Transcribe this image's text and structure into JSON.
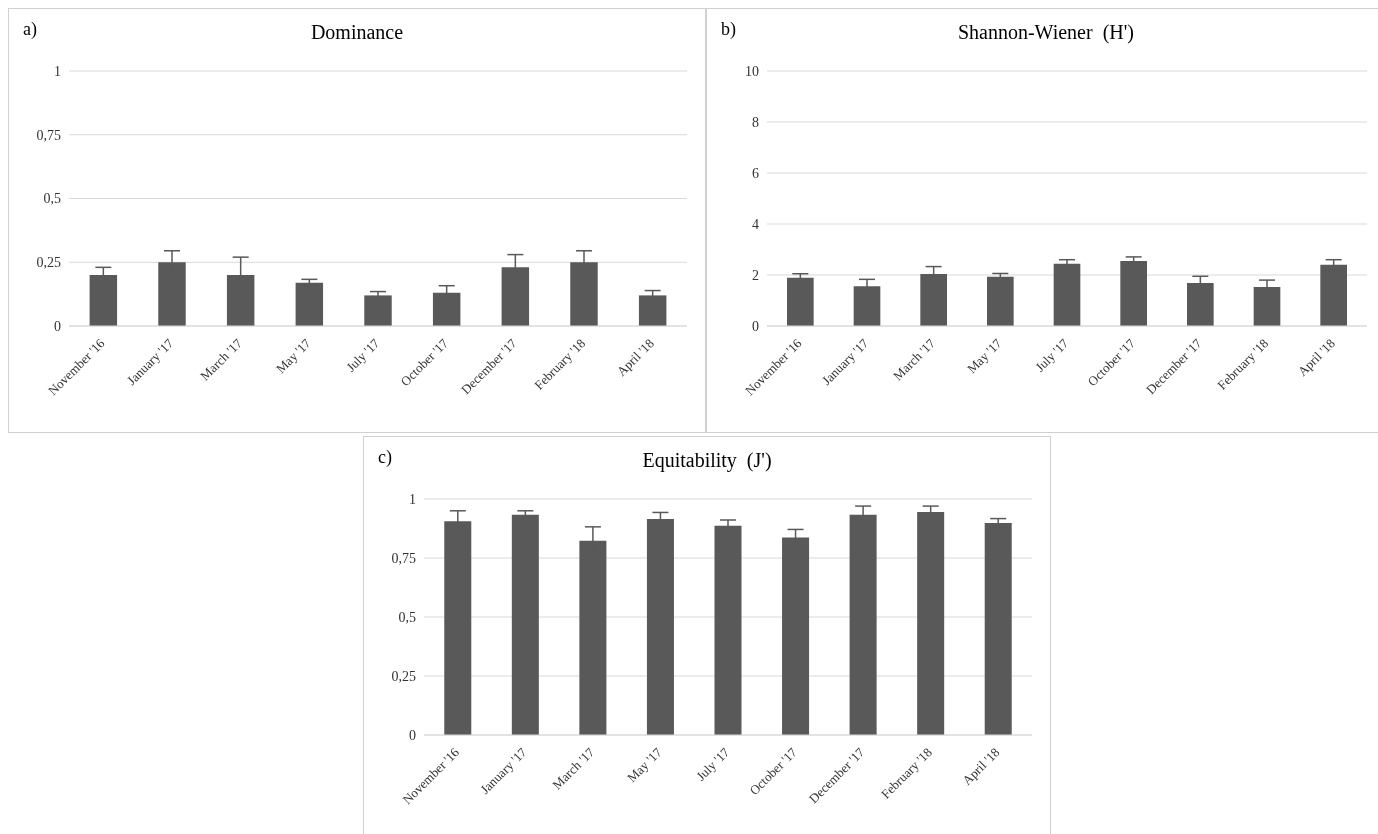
{
  "chart_data": [
    {
      "type": "bar",
      "title": "Dominance",
      "annotations": [
        "a)"
      ],
      "categories": [
        "November '16",
        "January '17",
        "March '17",
        "May '17",
        "July '17",
        "October '17",
        "December '17",
        "February '18",
        "April '18"
      ],
      "values": [
        0.2,
        0.25,
        0.2,
        0.17,
        0.12,
        0.13,
        0.23,
        0.25,
        0.12
      ],
      "errors": [
        0.03,
        0.045,
        0.07,
        0.013,
        0.015,
        0.028,
        0.05,
        0.045,
        0.019
      ],
      "color": "#595959",
      "ylim": [
        0,
        1
      ],
      "yticks": [
        0,
        {
          "value": 0.25,
          "label": "0,25"
        },
        {
          "value": 0.5,
          "label": "0,5"
        },
        {
          "value": 0.75,
          "label": "0,75"
        },
        1
      ],
      "grid": "y"
    },
    {
      "type": "bar",
      "title": "Shannon-Wiener  (H')",
      "annotations": [
        "b)"
      ],
      "categories": [
        "November '16",
        "January '17",
        "March '17",
        "May '17",
        "July '17",
        "October '17",
        "December '17",
        "February '18",
        "April '18"
      ],
      "values": [
        1.89,
        1.56,
        2.04,
        1.93,
        2.44,
        2.55,
        1.69,
        1.53,
        2.4
      ],
      "errors": [
        0.16,
        0.27,
        0.29,
        0.13,
        0.16,
        0.16,
        0.26,
        0.27,
        0.2
      ],
      "color": "#595959",
      "ylim": [
        0,
        10
      ],
      "yticks": [
        0,
        2,
        4,
        6,
        8,
        10
      ],
      "grid": "y"
    },
    {
      "type": "bar",
      "title": "Equitability  (J')",
      "annotations": [
        "c)"
      ],
      "categories": [
        "November '16",
        "January '17",
        "March '17",
        "May '17",
        "July '17",
        "October '17",
        "December '17",
        "February '18",
        "April '18"
      ],
      "values": [
        0.906,
        0.933,
        0.823,
        0.915,
        0.887,
        0.837,
        0.933,
        0.945,
        0.898
      ],
      "errors": [
        0.044,
        0.017,
        0.059,
        0.028,
        0.024,
        0.034,
        0.037,
        0.025,
        0.019
      ],
      "color": "#595959",
      "ylim": [
        0,
        1
      ],
      "yticks": [
        0,
        {
          "value": 0.25,
          "label": "0,25"
        },
        {
          "value": 0.5,
          "label": "0,5"
        },
        {
          "value": 0.75,
          "label": "0,75"
        },
        1
      ],
      "grid": "y"
    }
  ]
}
